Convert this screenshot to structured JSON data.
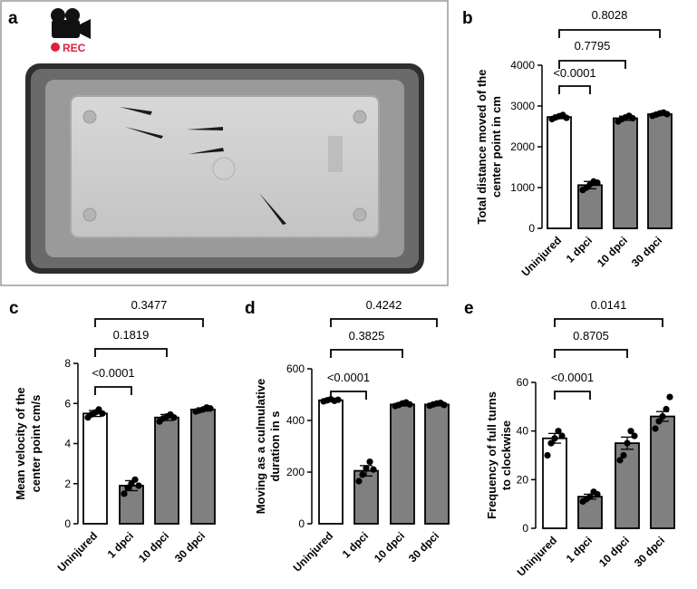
{
  "panel_a": {
    "letter": "a",
    "rec_label": "REC",
    "icons": [
      "video-camera-icon",
      "record-dot-icon"
    ],
    "colors": {
      "rec": "#e0203c"
    }
  },
  "chart_data": [
    {
      "letter": "b",
      "type": "bar",
      "categories": [
        "Uninjured",
        "1 dpci",
        "10 dpci",
        "30 dpci"
      ],
      "bar_colors": [
        "#ffffff",
        "#808080",
        "#808080",
        "#808080"
      ],
      "values": [
        2730,
        1060,
        2700,
        2800
      ],
      "errors": [
        40,
        90,
        50,
        30
      ],
      "points": [
        [
          2680,
          2720,
          2750,
          2780,
          2710
        ],
        [
          940,
          1000,
          1080,
          1150,
          1120
        ],
        [
          2620,
          2680,
          2720,
          2760,
          2700
        ],
        [
          2760,
          2790,
          2820,
          2840,
          2800
        ]
      ],
      "ylabel": [
        "Total distance moved of the",
        "center point in cm"
      ],
      "ylim": [
        0,
        4000
      ],
      "yticks": [
        0,
        1000,
        2000,
        3000,
        4000
      ],
      "comparisons": [
        {
          "from": 0,
          "to": 1,
          "label": "<0.0001"
        },
        {
          "from": 0,
          "to": 2,
          "label": "0.7795"
        },
        {
          "from": 0,
          "to": 3,
          "label": "0.8028"
        }
      ]
    },
    {
      "letter": "c",
      "type": "bar",
      "categories": [
        "Uninjured",
        "1 dpci",
        "10 dpci",
        "30 dpci"
      ],
      "bar_colors": [
        "#ffffff",
        "#808080",
        "#808080",
        "#808080"
      ],
      "values": [
        5.5,
        1.9,
        5.3,
        5.7
      ],
      "errors": [
        0.15,
        0.25,
        0.15,
        0.08
      ],
      "points": [
        [
          5.3,
          5.45,
          5.55,
          5.7,
          5.5
        ],
        [
          1.5,
          1.8,
          2.0,
          2.2,
          1.9
        ],
        [
          5.1,
          5.25,
          5.35,
          5.45,
          5.3
        ],
        [
          5.6,
          5.65,
          5.7,
          5.8,
          5.75
        ]
      ],
      "ylabel": [
        "Mean velocity of the",
        "center point  cm/s"
      ],
      "ylim": [
        0,
        8
      ],
      "yticks": [
        0,
        2,
        4,
        6,
        8
      ],
      "comparisons": [
        {
          "from": 0,
          "to": 1,
          "label": "<0.0001"
        },
        {
          "from": 0,
          "to": 2,
          "label": "0.1819"
        },
        {
          "from": 0,
          "to": 3,
          "label": "0.3477"
        }
      ]
    },
    {
      "letter": "d",
      "type": "bar",
      "categories": [
        "Uninjured",
        "1 dpci",
        "10 dpci",
        "30 dpci"
      ],
      "bar_colors": [
        "#ffffff",
        "#808080",
        "#808080",
        "#808080"
      ],
      "values": [
        478,
        205,
        462,
        462
      ],
      "errors": [
        5,
        20,
        6,
        5
      ],
      "points": [
        [
          474,
          478,
          482,
          476,
          480
        ],
        [
          165,
          190,
          215,
          240,
          210
        ],
        [
          456,
          460,
          466,
          470,
          462
        ],
        [
          457,
          462,
          466,
          468,
          460
        ]
      ],
      "ylabel": [
        "Moving as a culmulative",
        "duration in s"
      ],
      "ylim": [
        0,
        600
      ],
      "yticks": [
        0,
        200,
        400,
        600
      ],
      "comparisons": [
        {
          "from": 0,
          "to": 1,
          "label": "<0.0001"
        },
        {
          "from": 0,
          "to": 2,
          "label": "0.3825"
        },
        {
          "from": 0,
          "to": 3,
          "label": "0.4242"
        }
      ]
    },
    {
      "letter": "e",
      "type": "bar",
      "categories": [
        "Uninjured",
        "1 dpci",
        "10 dpci",
        "30 dpci"
      ],
      "bar_colors": [
        "#ffffff",
        "#808080",
        "#808080",
        "#808080"
      ],
      "values": [
        37,
        13,
        35,
        46
      ],
      "errors": [
        2,
        1,
        2.5,
        2
      ],
      "points": [
        [
          30,
          35,
          37,
          40,
          38
        ],
        [
          11,
          12,
          13,
          15,
          14
        ],
        [
          28,
          30,
          35,
          40,
          38
        ],
        [
          41,
          44,
          46,
          49,
          54
        ]
      ],
      "ylabel": [
        "Frequency of full turns",
        "to clockwise"
      ],
      "ylim": [
        0,
        60
      ],
      "yticks": [
        0,
        20,
        40,
        60
      ],
      "comparisons": [
        {
          "from": 0,
          "to": 1,
          "label": "<0.0001"
        },
        {
          "from": 0,
          "to": 2,
          "label": "0.8705"
        },
        {
          "from": 0,
          "to": 3,
          "label": "0.0141"
        }
      ]
    }
  ]
}
